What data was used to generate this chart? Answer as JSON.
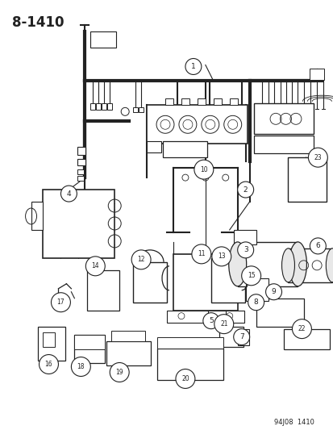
{
  "title": "8-1410",
  "footer": "94J08  1410",
  "bg_color": "#ffffff",
  "line_color": "#222222",
  "fig_width": 4.14,
  "fig_height": 5.33,
  "dpi": 100
}
